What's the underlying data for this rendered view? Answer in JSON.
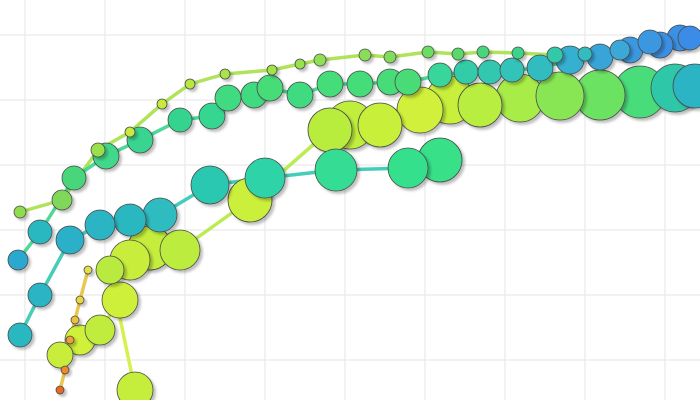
{
  "chart_data": {
    "type": "bubble",
    "xlim": [
      0,
      700
    ],
    "ylim": [
      0,
      400
    ],
    "xticks": [
      25,
      105,
      185,
      265,
      345,
      425,
      505,
      585,
      665
    ],
    "yticks": [
      40,
      105,
      170,
      235,
      300,
      365
    ],
    "grid": true,
    "series": [
      {
        "line_color": "#a6e048",
        "x": [
          20,
          62,
          98,
          130,
          162,
          190,
          225,
          272,
          300,
          320,
          365,
          390,
          428,
          458,
          483,
          518,
          555,
          585,
          620,
          650,
          680
        ],
        "y": [
          188,
          200,
          250,
          268,
          296,
          316,
          326,
          330,
          336,
          340,
          345,
          343,
          348,
          346,
          348,
          347,
          345,
          346,
          350,
          358,
          362
        ],
        "size": [
          6,
          10,
          7,
          5,
          5,
          5,
          5,
          5,
          5,
          6,
          6,
          6,
          6,
          6,
          6,
          6,
          8,
          7,
          10,
          12,
          13
        ],
        "colors": [
          "#8fdc4f",
          "#7fd85a",
          "#9ae04c",
          "#c8ea3c",
          "#c8ea3c",
          "#b8e840",
          "#a8e646",
          "#a0e44a",
          "#98e24e",
          "#90e052",
          "#88de56",
          "#80dc5a",
          "#6cdc62",
          "#5ad86c",
          "#48d67a",
          "#3ad48a",
          "#30c8a8",
          "#30bcc0",
          "#3aa8d8",
          "#3a98e0",
          "#3a90e4"
        ]
      },
      {
        "line_color": "#3cd48c",
        "x": [
          18,
          40,
          74,
          106,
          140,
          180,
          212,
          228,
          254,
          270,
          300,
          330,
          360,
          390,
          408,
          440,
          466,
          490,
          512,
          540,
          570,
          600,
          630,
          660,
          690
        ],
        "y": [
          140,
          168,
          222,
          244,
          260,
          280,
          284,
          302,
          305,
          312,
          305,
          316,
          316,
          318,
          318,
          325,
          328,
          328,
          330,
          332,
          340,
          343,
          350,
          355,
          362
        ],
        "size": [
          10,
          12,
          12,
          13,
          13,
          12,
          13,
          13,
          13,
          13,
          13,
          13,
          13,
          13,
          13,
          12,
          12,
          12,
          12,
          13,
          14,
          13,
          13,
          13,
          12
        ],
        "colors": [
          "#2aa8d0",
          "#2ab8c0",
          "#48d67a",
          "#40d88a",
          "#38d490",
          "#36d48e",
          "#36d690",
          "#40da80",
          "#40da80",
          "#46dc78",
          "#40da80",
          "#44dc7a",
          "#44dc7a",
          "#46dc78",
          "#48dc76",
          "#38d69a",
          "#30cca8",
          "#30c8b0",
          "#30c4b8",
          "#30bcc0",
          "#34b0d0",
          "#38a4d8",
          "#3a98e0",
          "#3a90e4",
          "#3a8ce6"
        ]
      },
      {
        "line_color": "#b4ea40",
        "x": [
          130,
          150,
          180,
          250,
          330,
          350,
          380,
          420,
          450,
          480,
          520,
          560,
          600,
          640,
          675,
          695
        ],
        "y": [
          140,
          152,
          150,
          200,
          270,
          275,
          275,
          290,
          300,
          295,
          302,
          304,
          305,
          308,
          312,
          314
        ],
        "size": [
          20,
          22,
          20,
          22,
          22,
          24,
          22,
          23,
          24,
          22,
          24,
          24,
          25,
          26,
          24,
          22
        ],
        "colors": [
          "#c8ee3a",
          "#c4ee3a",
          "#bcec3c",
          "#caf03a",
          "#b8ec3e",
          "#c0ee3c",
          "#c8f03a",
          "#d0f03a",
          "#c8f03a",
          "#b8ee40",
          "#a8ec46",
          "#88e654",
          "#6ce262",
          "#48dc7a",
          "#2ec8a8",
          "#2ab4c4"
        ]
      },
      {
        "line_color": "#30c8b0",
        "x": [
          20,
          40,
          70,
          100,
          130,
          160,
          210,
          265,
          336,
          408,
          440
        ],
        "y": [
          65,
          105,
          160,
          175,
          180,
          185,
          215,
          222,
          230,
          232,
          240
        ],
        "size": [
          12,
          12,
          14,
          15,
          16,
          17,
          19,
          20,
          21,
          20,
          22
        ],
        "colors": [
          "#2ab8c0",
          "#2ab4c4",
          "#2ab0c8",
          "#2ab4c4",
          "#2ab8c0",
          "#2ebcc0",
          "#2cc8b0",
          "#2ed4a8",
          "#34dc94",
          "#36e08c",
          "#38e088"
        ]
      },
      {
        "line_color": "#d0f03a",
        "x": [
          60,
          80,
          100,
          120,
          110,
          135
        ],
        "y": [
          45,
          60,
          70,
          100,
          130,
          10
        ],
        "size": [
          13,
          15,
          15,
          18,
          14,
          18
        ],
        "colors": [
          "#c8ee3a",
          "#d0f03a",
          "#c0ec3c",
          "#cef03a",
          "#b8ea40",
          "#c4ee3a"
        ]
      },
      {
        "line_color": "#e8c040",
        "x": [
          60,
          65,
          70,
          75,
          80,
          88
        ],
        "y": [
          10,
          30,
          60,
          80,
          100,
          130
        ],
        "size": [
          4,
          4,
          4,
          4,
          4,
          4
        ],
        "colors": [
          "#e86a20",
          "#ee8a2a",
          "#f0a030",
          "#f0c038",
          "#e8d840",
          "#e0e048"
        ]
      }
    ]
  }
}
